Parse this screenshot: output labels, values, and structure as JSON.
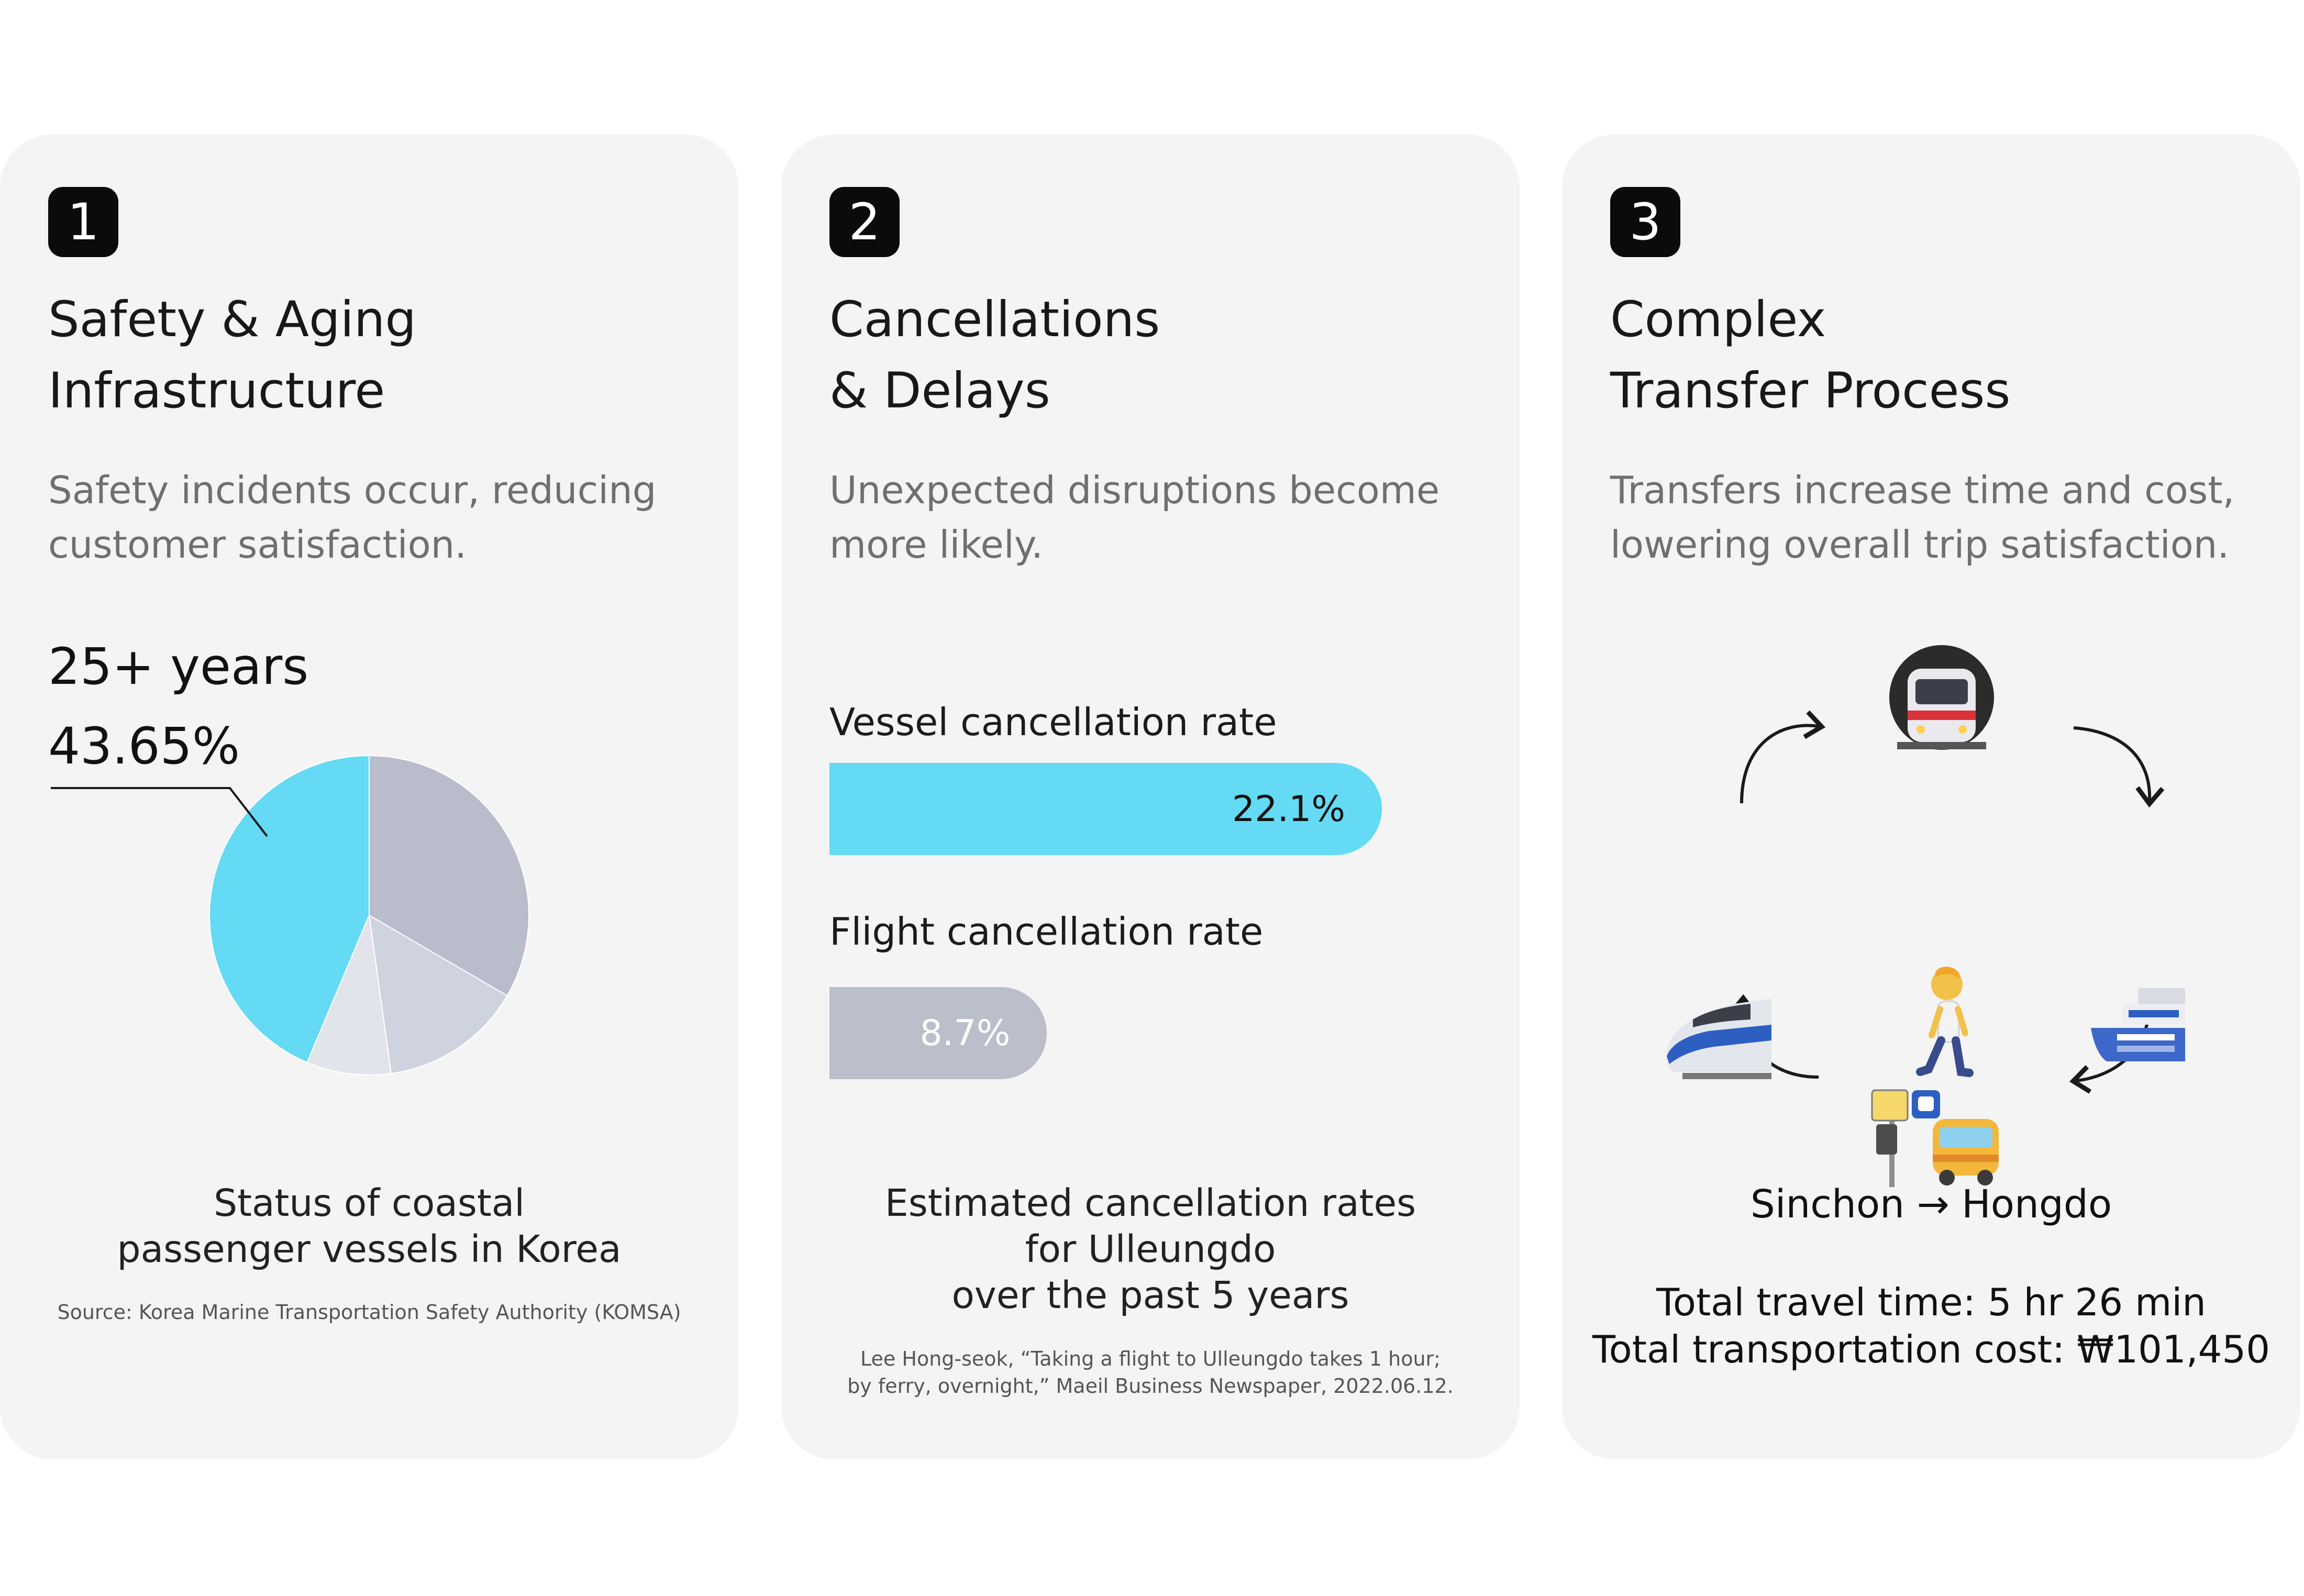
{
  "card1": {
    "number": "1",
    "title_lines": [
      "Safety & Aging",
      "Infrastructure"
    ],
    "desc_lines": [
      "Safety incidents occur, reducing",
      "customer satisfaction."
    ],
    "stat_years": "25+ years",
    "stat_percent": "43.65%",
    "caption_lines": [
      "Status of coastal",
      "passenger vessels in Korea"
    ],
    "source": "Source: Korea Marine Transportation Safety Authority (KOMSA)"
  },
  "card2": {
    "number": "2",
    "title_lines": [
      "Cancellations",
      "& Delays"
    ],
    "desc_lines": [
      "Unexpected disruptions become",
      "more likely."
    ],
    "caption_lines": [
      "Estimated cancellation rates",
      "for Ulleungdo",
      "over the past 5 years"
    ],
    "source_lines": [
      "Lee Hong-seok, “Taking a flight to Ulleungdo takes 1 hour;",
      "by ferry, overnight,” Maeil Business Newspaper, 2022.06.12."
    ]
  },
  "card3": {
    "number": "3",
    "title_lines": [
      "Complex",
      "Transfer Process"
    ],
    "desc_lines": [
      "Transfers increase time and cost,",
      "lowering overall trip satisfaction."
    ],
    "icons": [
      "metro-icon",
      "ferry-icon",
      "bus-stop-icon",
      "high-speed-train-icon",
      "walking-person-icon"
    ],
    "route": "Sinchon → Hongdo",
    "totals_lines": [
      "Total travel time: 5 hr 26 min",
      "Total transportation cost: ₩101,450"
    ]
  },
  "chart_data": [
    {
      "type": "pie",
      "title": "Status of coastal passenger vessels in Korea",
      "highlight_label": "25+ years",
      "highlight_value": 43.65,
      "slices": [
        {
          "label": "25+ years",
          "value": 43.65,
          "color": "#64daf4"
        },
        {
          "label": "",
          "value": 33.4,
          "color": "#b8bccb"
        },
        {
          "label": "",
          "value": 14.4,
          "color": "#cfd2df"
        },
        {
          "label": "",
          "value": 8.55,
          "color": "#e2e4ec"
        }
      ]
    },
    {
      "type": "bar",
      "title": "Estimated cancellation rates for Ulleungdo over the past 5 years",
      "categories": [
        "Vessel cancellation rate",
        "Flight cancellation rate"
      ],
      "values": [
        22.1,
        8.7
      ],
      "value_labels": [
        "22.1%",
        "8.7%"
      ],
      "colors": [
        "#64daf4",
        "#bbbecb"
      ],
      "xlim": [
        0,
        22.1
      ]
    }
  ]
}
